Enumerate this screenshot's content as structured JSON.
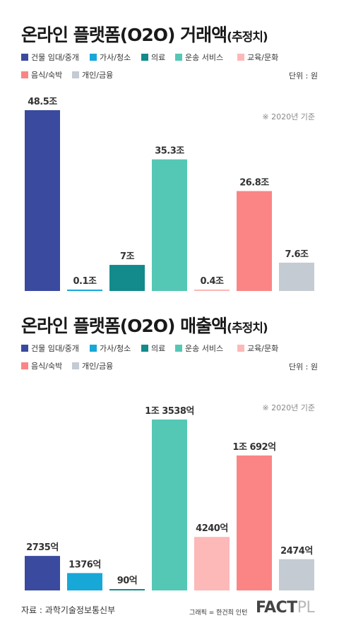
{
  "colors": {
    "categories": [
      "#3a4a9f",
      "#17a8d8",
      "#138a8c",
      "#55c7b5",
      "#fdb8b8",
      "#fb8585",
      "#c4cbd3"
    ],
    "label_text": "#333333"
  },
  "legend_labels": [
    "건물 임대/중개",
    "가사/청소",
    "의료",
    "운송 서비스",
    "교육/문화",
    "음식/숙박",
    "개인/금융"
  ],
  "chart1": {
    "title_main": "온라인 플랫폼(O2O) 거래액",
    "title_suffix": "(추정치)",
    "unit": "단위 : 원",
    "basis": "※ 2020년 기준"
  },
  "chart2": {
    "title_main": "온라인 플랫폼(O2O) 매출액",
    "title_suffix": "(추정치)",
    "unit": "단위 : 원",
    "basis": "※ 2020년 기준"
  },
  "chart_data": [
    {
      "type": "bar",
      "title": "온라인 플랫폼(O2O) 거래액(추정치)",
      "unit_note": "단위 : 원",
      "categories": [
        "건물 임대/중개",
        "가사/청소",
        "의료",
        "운송 서비스",
        "교육/문화",
        "음식/숙박",
        "개인/금융"
      ],
      "values": [
        48.5,
        0.1,
        7,
        35.3,
        0.4,
        26.8,
        7.6
      ],
      "value_unit": "조",
      "data_labels": [
        "48.5조",
        "0.1조",
        "7조",
        "35.3조",
        "0.4조",
        "26.8조",
        "7.6조"
      ],
      "ylim": [
        0,
        48.5
      ]
    },
    {
      "type": "bar",
      "title": "온라인 플랫폼(O2O) 매출액(추정치)",
      "unit_note": "단위 : 원",
      "categories": [
        "건물 임대/중개",
        "가사/청소",
        "의료",
        "운송 서비스",
        "교육/문화",
        "음식/숙박",
        "개인/금융"
      ],
      "values": [
        2735,
        1376,
        90,
        13538,
        4240,
        10692,
        2474
      ],
      "value_unit": "억",
      "data_labels": [
        "2735억",
        "1376억",
        "90억",
        "1조 3538억",
        "4240억",
        "1조 692억",
        "2474억"
      ],
      "ylim": [
        0,
        13538
      ]
    }
  ],
  "footer": {
    "source": "자료 : 과학기술정보통신부",
    "credit": "그래픽 = 한건희 인턴",
    "logo_a": "FACT",
    "logo_b": "PL"
  }
}
